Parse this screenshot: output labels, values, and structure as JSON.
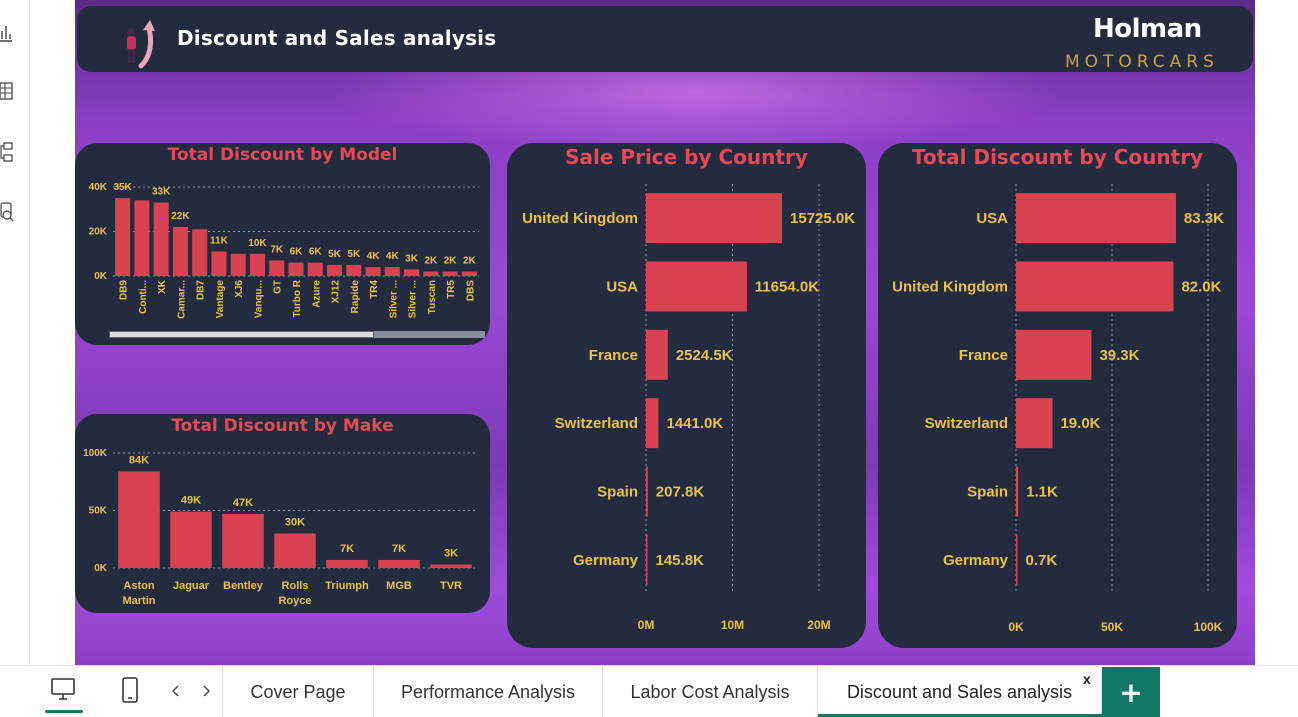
{
  "header": {
    "title": "Discount and Sales analysis",
    "logo_top": "Holman",
    "logo_bottom": "MOTORCARS"
  },
  "rail": {
    "icons": [
      "bar-chart-icon",
      "table-icon",
      "model-icon",
      "dax-query-icon"
    ]
  },
  "colors": {
    "bar": "#d9434f",
    "label": "#e8c14a",
    "panel": "#252b3f",
    "title": "#e34a56",
    "accent": "#117865"
  },
  "chart_data": [
    {
      "id": "model",
      "type": "bar",
      "title": "Total Discount by Model",
      "categories": [
        "DB9",
        "Conti...",
        "XK",
        "Camar...",
        "DB7",
        "Vantage",
        "XJ6",
        "Vanqu...",
        "GT",
        "Turbo R",
        "Azure",
        "XJ12",
        "Rapide",
        "TR4",
        "Silver ...",
        "Silver ...",
        "Tuscan",
        "TR5",
        "DBS"
      ],
      "values": [
        35000,
        34000,
        33000,
        22000,
        21000,
        11000,
        10000,
        10000,
        7000,
        6000,
        6000,
        5000,
        5000,
        4000,
        4000,
        3000,
        2000,
        2000,
        2000
      ],
      "data_labels": [
        "35K",
        "",
        "33K",
        "22K",
        "",
        "11K",
        "",
        "10K",
        "7K",
        "6K",
        "6K",
        "5K",
        "5K",
        "4K",
        "4K",
        "3K",
        "2K",
        "2K",
        "2K"
      ],
      "yticks": [
        "40K",
        "20K",
        "0K"
      ],
      "ylim": [
        0,
        40000
      ]
    },
    {
      "id": "make",
      "type": "bar",
      "title": "Total Discount by Make",
      "categories": [
        "Aston Martin",
        "Jaguar",
        "Bentley",
        "Rolls Royce",
        "Triumph",
        "MGB",
        "TVR"
      ],
      "values": [
        84000,
        49000,
        47000,
        30000,
        7000,
        7000,
        3000
      ],
      "data_labels": [
        "84K",
        "49K",
        "47K",
        "30K",
        "7K",
        "7K",
        "3K"
      ],
      "yticks": [
        "100K",
        "50K",
        "0K"
      ],
      "ylim": [
        0,
        100000
      ]
    },
    {
      "id": "sale",
      "type": "bar",
      "orientation": "horizontal",
      "title": "Sale Price by Country",
      "categories": [
        "United Kingdom",
        "USA",
        "France",
        "Switzerland",
        "Spain",
        "Germany"
      ],
      "values": [
        15725000,
        11654000,
        2524500,
        1441000,
        207800,
        145800
      ],
      "data_labels": [
        "15725.0K",
        "11654.0K",
        "2524.5K",
        "1441.0K",
        "207.8K",
        "145.8K"
      ],
      "xticks": [
        "0M",
        "10M",
        "20M"
      ],
      "xlim": [
        0,
        20000000
      ]
    },
    {
      "id": "disc",
      "type": "bar",
      "orientation": "horizontal",
      "title": "Total Discount by Country",
      "categories": [
        "USA",
        "United Kingdom",
        "France",
        "Switzerland",
        "Spain",
        "Germany"
      ],
      "values": [
        83300,
        82000,
        39300,
        19000,
        1100,
        700
      ],
      "data_labels": [
        "83.3K",
        "82.0K",
        "39.3K",
        "19.0K",
        "1.1K",
        "0.7K"
      ],
      "xticks": [
        "0K",
        "50K",
        "100K"
      ],
      "xlim": [
        0,
        100000
      ]
    }
  ],
  "tabs": {
    "pages": [
      "Cover Page",
      "Performance Analysis",
      "Labor Cost Analysis",
      "Discount and Sales analysis"
    ],
    "active": "Discount and Sales analysis",
    "close_label": "x",
    "add_label": "+"
  }
}
